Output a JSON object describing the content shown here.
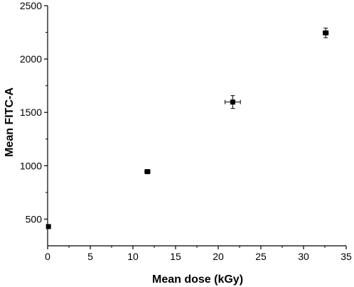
{
  "chart_data": {
    "type": "scatter",
    "title": "",
    "xlabel": "Mean dose (kGy)",
    "ylabel": "Mean FITC-A",
    "xlim": [
      0,
      35
    ],
    "ylim": [
      250,
      2500
    ],
    "xticks": [
      0,
      5,
      10,
      15,
      20,
      25,
      30,
      35
    ],
    "yticks": [
      500,
      1000,
      1500,
      2000,
      2500
    ],
    "grid": false,
    "legend": "none",
    "marker": "square",
    "marker_color": "#000000",
    "points": [
      {
        "x": 0.1,
        "y": 430,
        "xerr": 0,
        "yerr": 0
      },
      {
        "x": 11.7,
        "y": 945,
        "xerr": 0.3,
        "yerr": 15
      },
      {
        "x": 21.7,
        "y": 1597,
        "xerr": 0.9,
        "yerr": 60
      },
      {
        "x": 32.6,
        "y": 2245,
        "xerr": 0.3,
        "yerr": 45
      }
    ]
  }
}
